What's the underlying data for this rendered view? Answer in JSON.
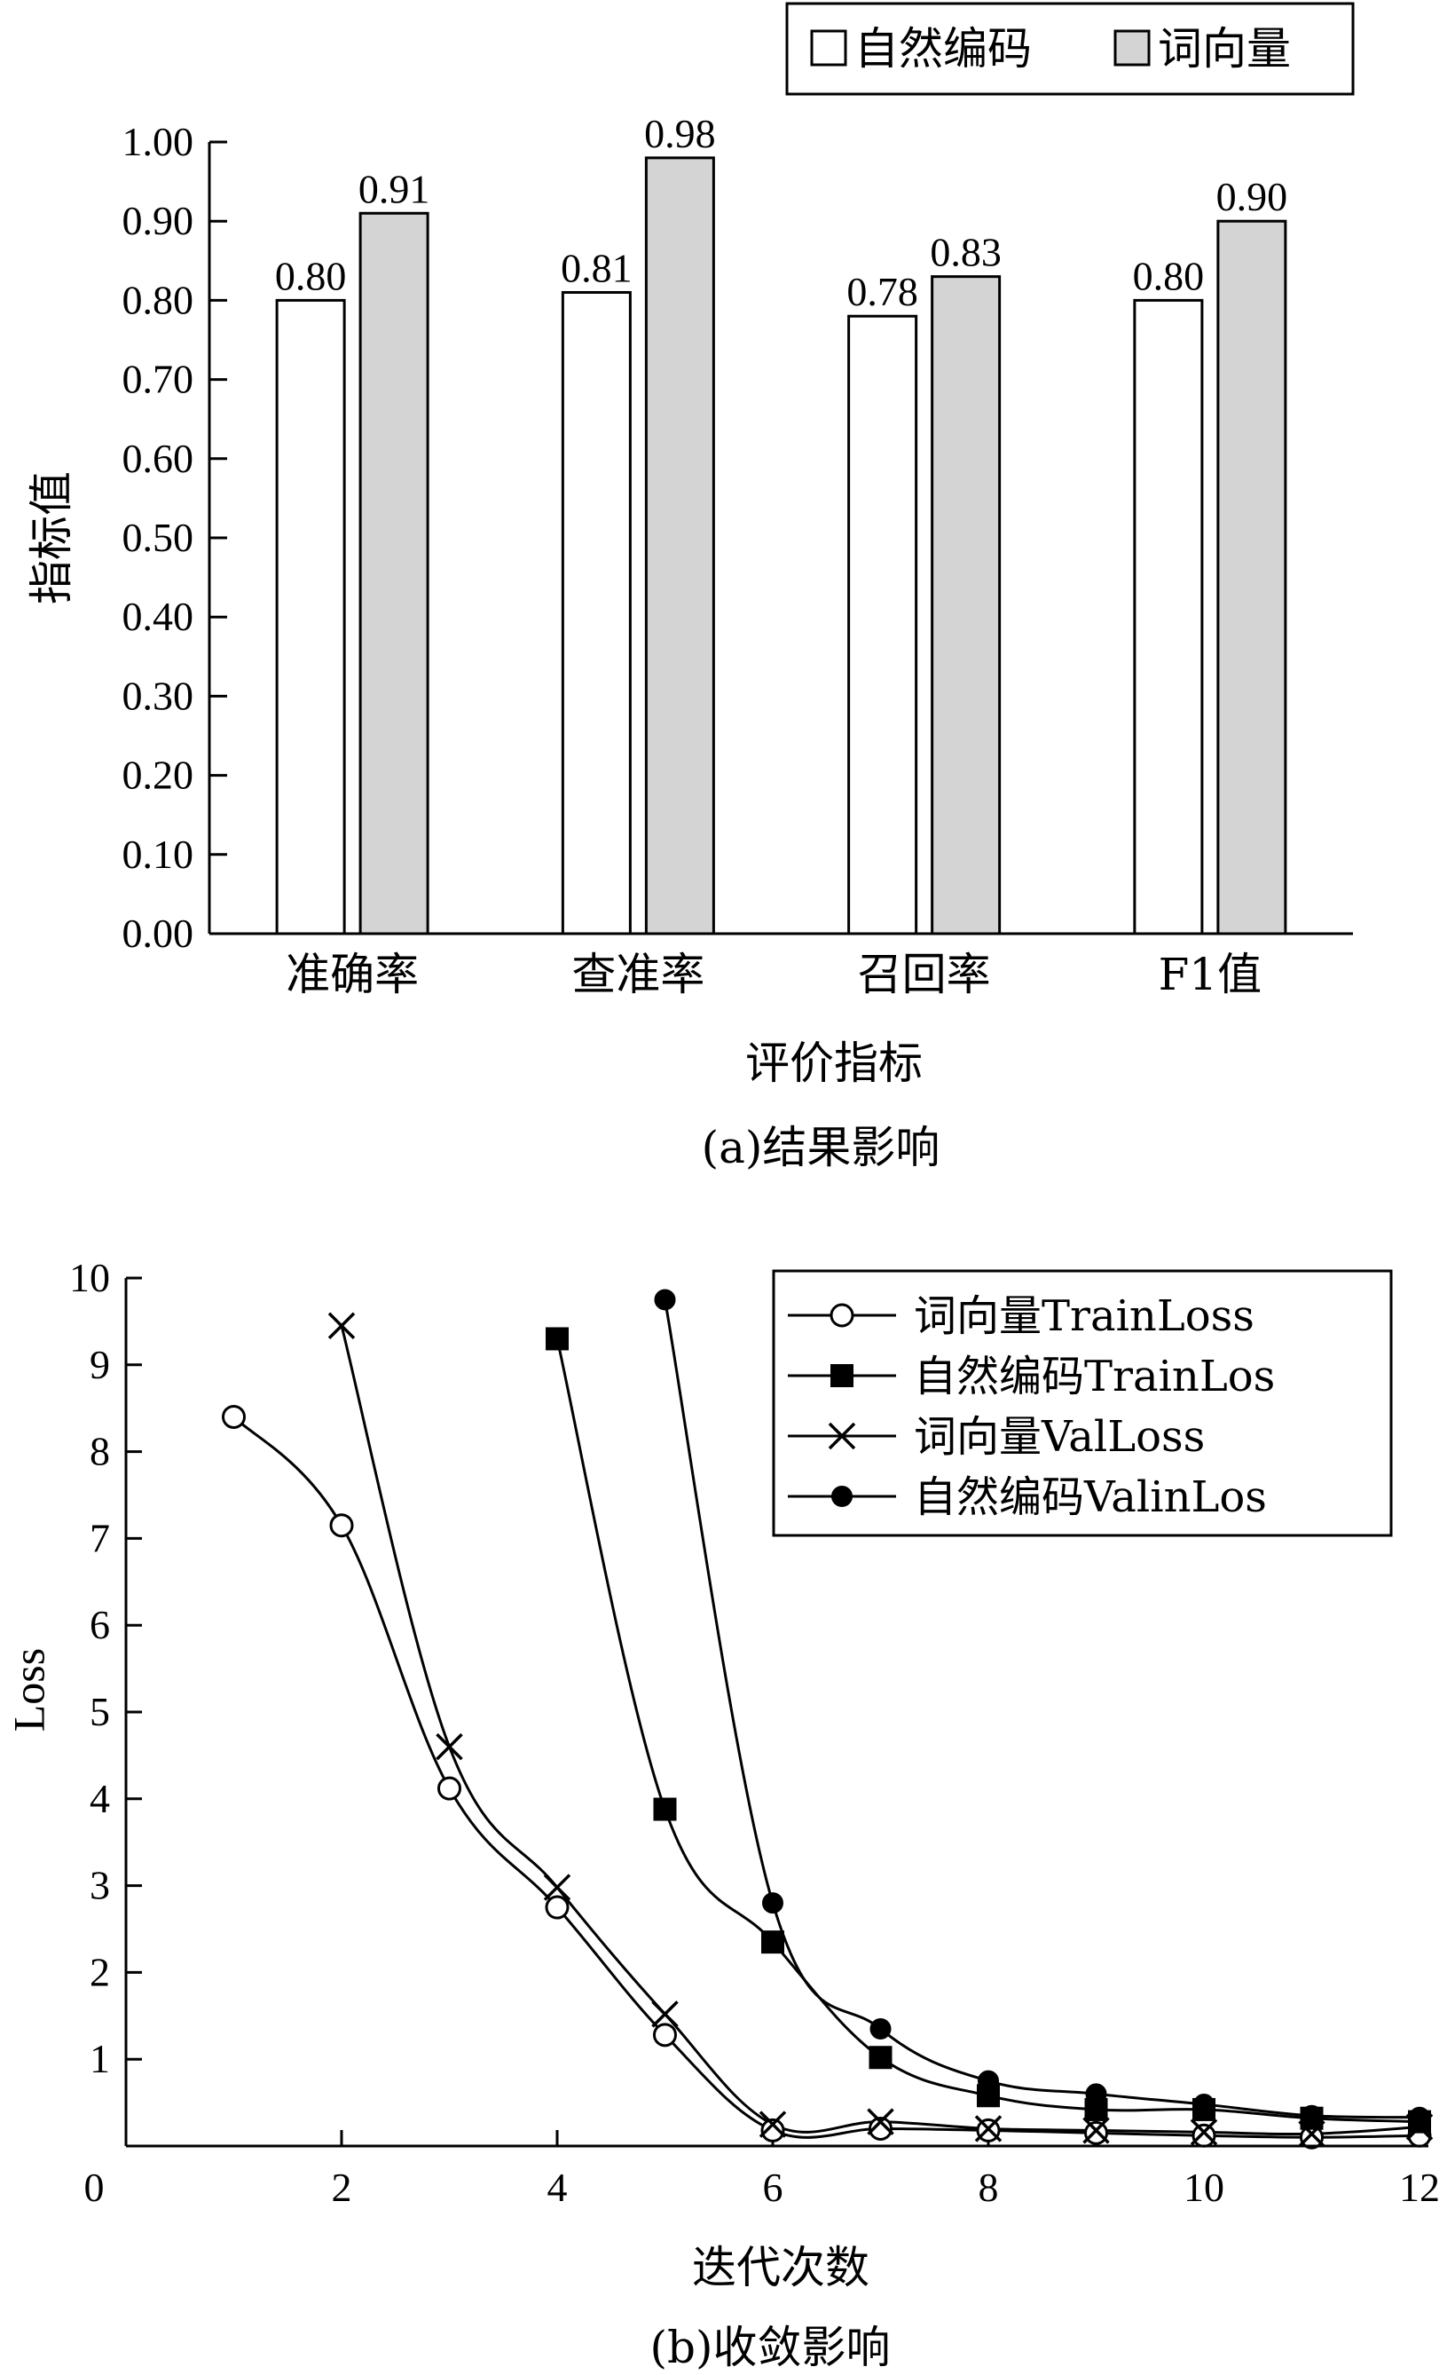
{
  "chart_data": [
    {
      "type": "bar",
      "title": "",
      "caption": "(a)结果影响",
      "xlabel": "评价指标",
      "ylabel": "指标值",
      "categories": [
        "准确率",
        "查准率",
        "召回率",
        "F1值"
      ],
      "ylim": [
        0,
        1.0
      ],
      "yticks": [
        "0.00",
        "0.10",
        "0.20",
        "0.30",
        "0.40",
        "0.50",
        "0.60",
        "0.70",
        "0.80",
        "0.90",
        "1.00"
      ],
      "legend_position": "top-right",
      "series": [
        {
          "name": "自然编码",
          "values": [
            0.8,
            0.81,
            0.78,
            0.8
          ],
          "labels": [
            "0.80",
            "0.81",
            "0.78",
            "0.80"
          ],
          "color": "#ffffff"
        },
        {
          "name": "词向量",
          "values": [
            0.91,
            0.98,
            0.83,
            0.9
          ],
          "labels": [
            "0.91",
            "0.98",
            "0.83",
            "0.90"
          ],
          "color": "#d4d4d4"
        }
      ]
    },
    {
      "type": "line",
      "title": "",
      "caption": "(b)收敛影响",
      "xlabel": "迭代次数",
      "ylabel": "Loss",
      "xlim": [
        0,
        12
      ],
      "ylim": [
        0,
        10
      ],
      "xticks": [
        "0",
        "2",
        "4",
        "6",
        "8",
        "10",
        "12"
      ],
      "yticks": [
        "1",
        "2",
        "3",
        "4",
        "5",
        "6",
        "7",
        "8",
        "9",
        "10"
      ],
      "legend_position": "top-right",
      "series": [
        {
          "name": "词向量TrainLoss",
          "marker": "open-circle",
          "x": [
            1,
            2,
            3,
            4,
            5,
            6,
            7,
            8,
            9,
            10,
            11,
            12
          ],
          "y": [
            8.4,
            7.15,
            4.12,
            2.75,
            1.28,
            0.18,
            0.2,
            0.18,
            0.15,
            0.12,
            0.1,
            0.12
          ]
        },
        {
          "name": "自然编码TrainLos",
          "marker": "filled-square",
          "x": [
            4,
            5,
            6,
            7,
            8,
            9,
            10,
            11,
            12
          ],
          "y": [
            9.3,
            3.88,
            2.35,
            1.02,
            0.58,
            0.42,
            0.42,
            0.32,
            0.28
          ]
        },
        {
          "name": "词向量ValLoss",
          "marker": "cross",
          "x": [
            2,
            3,
            4,
            5,
            6,
            7,
            8,
            9,
            10,
            11,
            12
          ],
          "y": [
            9.45,
            4.6,
            2.98,
            1.52,
            0.25,
            0.28,
            0.2,
            0.18,
            0.16,
            0.14,
            0.22
          ]
        },
        {
          "name": "自然编码ValinLos",
          "marker": "filled-circle",
          "x": [
            5,
            6,
            7,
            8,
            9,
            10,
            11,
            12
          ],
          "y": [
            9.75,
            2.8,
            1.35,
            0.75,
            0.6,
            0.48,
            0.35,
            0.33
          ]
        }
      ]
    }
  ]
}
